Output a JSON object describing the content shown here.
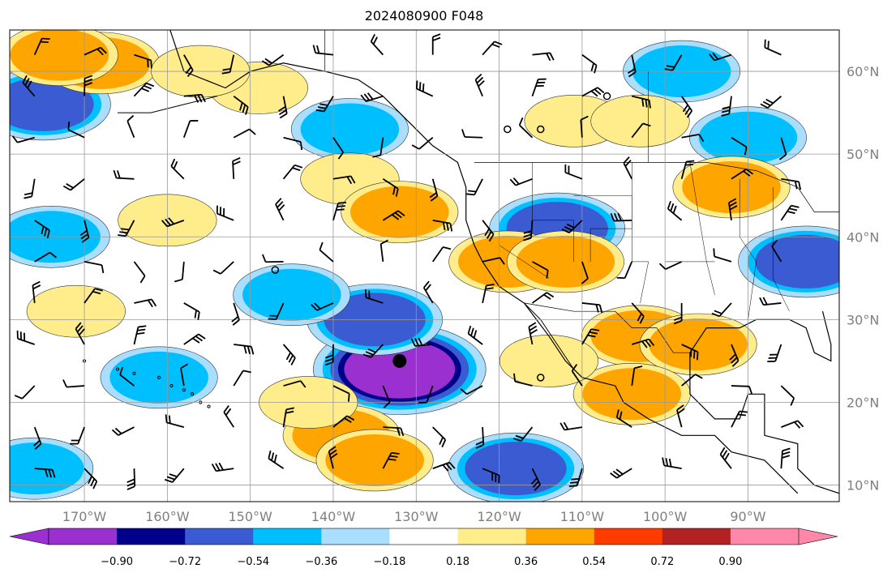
{
  "title": "2024080900 F048",
  "map": {
    "lon_min": -179,
    "lon_max": -79,
    "lat_min": 8,
    "lat_max": 65,
    "lon_ticks": [
      -170,
      -160,
      -150,
      -140,
      -130,
      -120,
      -110,
      -100,
      -90
    ],
    "lon_tick_labels": [
      "170°W",
      "160°W",
      "150°W",
      "140°W",
      "130°W",
      "120°W",
      "110°W",
      "100°W",
      "90°W"
    ],
    "lat_ticks": [
      10,
      20,
      30,
      40,
      50,
      60
    ],
    "lat_tick_labels": [
      "10°N",
      "20°N",
      "30°N",
      "40°N",
      "50°N",
      "60°N"
    ],
    "grid": true
  },
  "colorbar": {
    "extend": "both",
    "labels": [
      "−0.90",
      "−0.72",
      "−0.54",
      "−0.36",
      "−0.18",
      "0.18",
      "0.36",
      "0.54",
      "0.72",
      "0.90"
    ],
    "colors": [
      "#9b30d0",
      "#00008b",
      "#3a5bd1",
      "#00bfff",
      "#aadeff",
      "#ffffff",
      "#ffec8b",
      "#ffa500",
      "#ff3c00",
      "#b22222",
      "#ff88aa"
    ]
  },
  "fields": {
    "negative": [
      {
        "lon": -132,
        "lat": 24,
        "level": 5
      },
      {
        "lon": -135,
        "lat": 30,
        "level": 3
      },
      {
        "lon": -118,
        "lat": 12,
        "level": 3
      },
      {
        "lon": -175,
        "lat": 56,
        "level": 3
      },
      {
        "lon": -113,
        "lat": 41,
        "level": 3
      },
      {
        "lon": -138,
        "lat": 53,
        "level": 2
      },
      {
        "lon": -98,
        "lat": 60,
        "level": 2
      },
      {
        "lon": -90,
        "lat": 52,
        "level": 2
      },
      {
        "lon": -83,
        "lat": 37,
        "level": 3
      },
      {
        "lon": -145,
        "lat": 33,
        "level": 2
      },
      {
        "lon": -161,
        "lat": 23,
        "level": 2
      },
      {
        "lon": -174,
        "lat": 40,
        "level": 2
      },
      {
        "lon": -176,
        "lat": 12,
        "level": 2
      }
    ],
    "positive": [
      {
        "lon": -168,
        "lat": 61,
        "level": 2
      },
      {
        "lon": -173,
        "lat": 62,
        "level": 2
      },
      {
        "lon": -138,
        "lat": 47,
        "level": 1
      },
      {
        "lon": -132,
        "lat": 43,
        "level": 2
      },
      {
        "lon": -119,
        "lat": 37,
        "level": 2
      },
      {
        "lon": -112,
        "lat": 37,
        "level": 2
      },
      {
        "lon": -103,
        "lat": 28,
        "level": 2
      },
      {
        "lon": -96,
        "lat": 27,
        "level": 2
      },
      {
        "lon": -139,
        "lat": 16,
        "level": 2
      },
      {
        "lon": -135,
        "lat": 13,
        "level": 2
      },
      {
        "lon": -149,
        "lat": 58,
        "level": 1
      },
      {
        "lon": -156,
        "lat": 60,
        "level": 1
      },
      {
        "lon": -104,
        "lat": 21,
        "level": 2
      },
      {
        "lon": -111,
        "lat": 54,
        "level": 1
      },
      {
        "lon": -103,
        "lat": 54,
        "level": 1
      },
      {
        "lon": -92,
        "lat": 46,
        "level": 2
      },
      {
        "lon": -114,
        "lat": 25,
        "level": 1
      },
      {
        "lon": -143,
        "lat": 20,
        "level": 1
      },
      {
        "lon": -171,
        "lat": 31,
        "level": 1
      },
      {
        "lon": -160,
        "lat": 42,
        "level": 1
      }
    ]
  },
  "markers": [
    {
      "kind": "low",
      "lon": -132,
      "lat": 25
    },
    {
      "kind": "calm",
      "lon": -147,
      "lat": 36
    },
    {
      "kind": "calm",
      "lon": -119,
      "lat": 53
    },
    {
      "kind": "calm",
      "lon": -115,
      "lat": 53
    },
    {
      "kind": "calm",
      "lon": -107,
      "lat": 57
    },
    {
      "kind": "calm",
      "lon": -115,
      "lat": 23
    }
  ]
}
